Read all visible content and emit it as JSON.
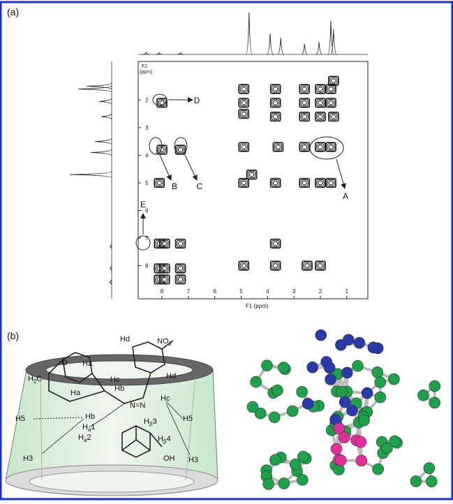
{
  "panels": {
    "a": "(a)",
    "b": "(b)"
  },
  "spectrum": {
    "x_label": "F1 (ppm)",
    "y_label": [
      "F2",
      "(ppm)"
    ],
    "xlim": [
      8.9,
      0.2
    ],
    "ylim": [
      0.6,
      9.2
    ],
    "xticks": [
      8,
      7,
      6,
      5,
      4,
      3,
      2,
      1
    ],
    "yticks": [
      2,
      3,
      4,
      5,
      6,
      7,
      8
    ],
    "projection_peaks": [
      {
        "ppm": 8.6,
        "intensity": 5
      },
      {
        "ppm": 8.1,
        "intensity": 4
      },
      {
        "ppm": 7.3,
        "intensity": 4
      },
      {
        "ppm": 4.7,
        "intensity": 100
      },
      {
        "ppm": 3.9,
        "intensity": 50
      },
      {
        "ppm": 3.5,
        "intensity": 40
      },
      {
        "ppm": 2.6,
        "intensity": 25
      },
      {
        "ppm": 2.05,
        "intensity": 30
      },
      {
        "ppm": 1.6,
        "intensity": 80
      },
      {
        "ppm": 1.5,
        "intensity": 60
      }
    ],
    "cross_peaks": [
      {
        "f1": 8.1,
        "f2": 8.1
      },
      {
        "f1": 7.9,
        "f2": 8.1
      },
      {
        "f1": 8.1,
        "f2": 8.5
      },
      {
        "f1": 7.9,
        "f2": 8.5
      },
      {
        "f1": 7.3,
        "f2": 8.1
      },
      {
        "f1": 7.3,
        "f2": 8.5
      },
      {
        "f1": 8.1,
        "f2": 7.2
      },
      {
        "f1": 7.9,
        "f2": 7.2
      },
      {
        "f1": 7.3,
        "f2": 7.2
      },
      {
        "f1": 8.0,
        "f2": 2.1
      },
      {
        "f1": 8.0,
        "f2": 3.8
      },
      {
        "f1": 7.3,
        "f2": 3.8
      },
      {
        "f1": 8.1,
        "f2": 5.0
      },
      {
        "f1": 4.9,
        "f2": 1.6
      },
      {
        "f1": 4.9,
        "f2": 2.1
      },
      {
        "f1": 4.9,
        "f2": 2.5
      },
      {
        "f1": 4.9,
        "f2": 3.7
      },
      {
        "f1": 4.9,
        "f2": 5.0
      },
      {
        "f1": 4.6,
        "f2": 4.7
      },
      {
        "f1": 3.7,
        "f2": 1.6
      },
      {
        "f1": 3.7,
        "f2": 2.1
      },
      {
        "f1": 3.7,
        "f2": 2.6
      },
      {
        "f1": 3.6,
        "f2": 3.7
      },
      {
        "f1": 3.7,
        "f2": 5.0
      },
      {
        "f1": 3.7,
        "f2": 7.2
      },
      {
        "f1": 3.7,
        "f2": 8.0
      },
      {
        "f1": 4.9,
        "f2": 8.0
      },
      {
        "f1": 2.6,
        "f2": 1.6
      },
      {
        "f1": 2.0,
        "f2": 1.6
      },
      {
        "f1": 1.6,
        "f2": 1.6
      },
      {
        "f1": 1.5,
        "f2": 1.3
      },
      {
        "f1": 2.6,
        "f2": 2.1
      },
      {
        "f1": 2.0,
        "f2": 2.1
      },
      {
        "f1": 1.6,
        "f2": 2.1
      },
      {
        "f1": 2.6,
        "f2": 2.6
      },
      {
        "f1": 2.0,
        "f2": 2.6
      },
      {
        "f1": 1.5,
        "f2": 2.6
      },
      {
        "f1": 2.6,
        "f2": 3.7
      },
      {
        "f1": 2.0,
        "f2": 3.7
      },
      {
        "f1": 1.6,
        "f2": 3.7
      },
      {
        "f1": 2.6,
        "f2": 5.0
      },
      {
        "f1": 2.0,
        "f2": 5.0
      },
      {
        "f1": 1.6,
        "f2": 5.0
      },
      {
        "f1": 2.5,
        "f2": 8.0
      },
      {
        "f1": 2.0,
        "f2": 8.0
      }
    ],
    "annotations": [
      "A",
      "B",
      "C",
      "D",
      "E"
    ]
  },
  "scheme": {
    "labels": [
      {
        "text": "H",
        "sub": "2",
        "after": "C"
      },
      {
        "text": "O"
      },
      {
        "text": "Ha"
      },
      {
        "text": "Hd"
      },
      {
        "text": "NO",
        "sub": "2"
      },
      {
        "text": "Hd"
      },
      {
        "text": "Hc"
      },
      {
        "text": "Hb"
      },
      {
        "text": "Ha"
      },
      {
        "text": "N=N"
      },
      {
        "text": "Hc"
      },
      {
        "text": "H5"
      },
      {
        "text": "Hb"
      },
      {
        "text": "H",
        "sub": "a",
        "after": "1"
      },
      {
        "text": "H",
        "sub": "β",
        "after": "3"
      },
      {
        "text": "H",
        "sub": "a",
        "after": "2"
      },
      {
        "text": "H",
        "sub": "β",
        "after": "4"
      },
      {
        "text": "OH"
      },
      {
        "text": "H5"
      },
      {
        "text": "H3"
      },
      {
        "text": "H3"
      }
    ]
  }
}
